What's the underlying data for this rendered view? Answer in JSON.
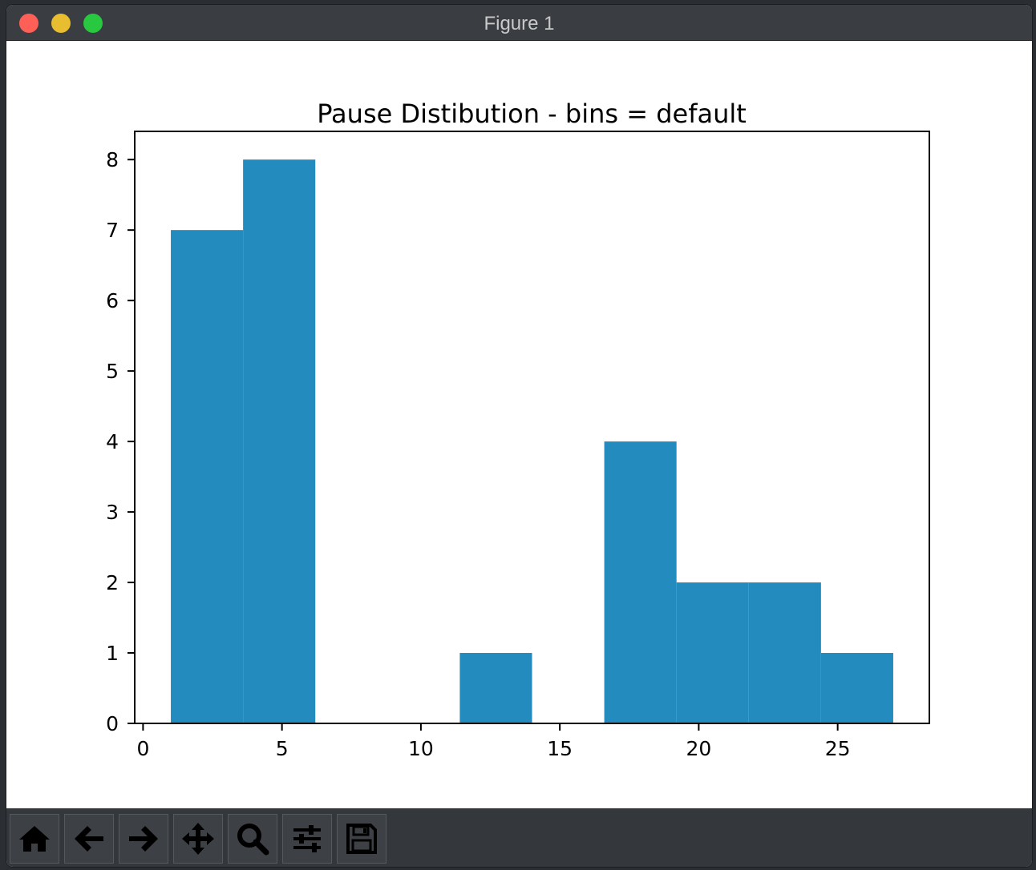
{
  "window": {
    "title": "Figure 1"
  },
  "toolbar": {
    "buttons": [
      {
        "name": "home-button",
        "icon": "home-icon"
      },
      {
        "name": "back-button",
        "icon": "arrow-left-icon"
      },
      {
        "name": "forward-button",
        "icon": "arrow-right-icon"
      },
      {
        "name": "pan-button",
        "icon": "move-icon"
      },
      {
        "name": "zoom-button",
        "icon": "magnifier-icon"
      },
      {
        "name": "configure-subplots-button",
        "icon": "sliders-icon"
      },
      {
        "name": "save-button",
        "icon": "floppy-disk-icon"
      }
    ]
  },
  "colors": {
    "bar": "#238bbe",
    "titlebar": "#3a3d41",
    "toolbar": "#34373b"
  },
  "chart_data": {
    "type": "bar",
    "title": "Pause Distibution - bins = default",
    "xlabel": "",
    "ylabel": "",
    "bin_edges": [
      1,
      3.6,
      6.2,
      8.8,
      11.4,
      14.0,
      16.6,
      19.2,
      21.8,
      24.4,
      27.0
    ],
    "values": [
      7,
      8,
      0,
      0,
      1,
      0,
      4,
      2,
      2,
      1
    ],
    "xlim": [
      -0.3,
      28.3
    ],
    "ylim": [
      0,
      8.4
    ],
    "xticks": [
      0,
      5,
      10,
      15,
      20,
      25
    ],
    "yticks": [
      0,
      1,
      2,
      3,
      4,
      5,
      6,
      7,
      8
    ],
    "grid": false
  }
}
